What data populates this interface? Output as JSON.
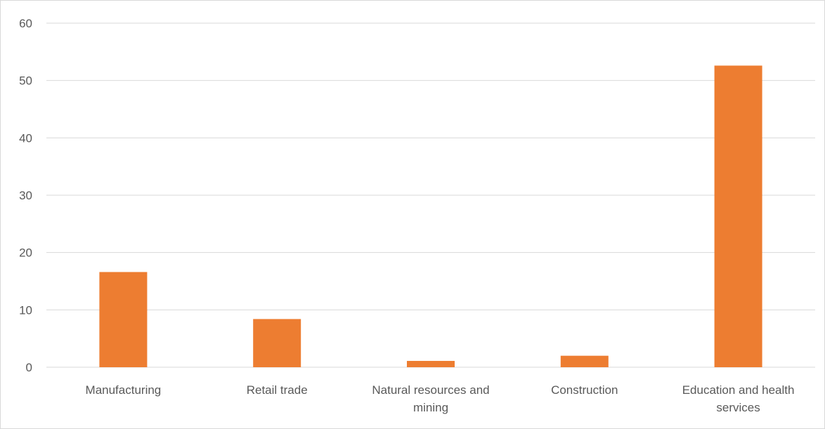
{
  "chart_data": {
    "type": "bar",
    "title": "",
    "xlabel": "",
    "ylabel": "",
    "categories": [
      [
        "Manufacturing"
      ],
      [
        "Retail trade"
      ],
      [
        "Natural resources and",
        "mining"
      ],
      [
        "Construction"
      ],
      [
        "Education and health",
        "services"
      ]
    ],
    "values": [
      16.6,
      8.4,
      1.1,
      2.0,
      52.6
    ],
    "ylim": [
      0,
      60
    ],
    "yticks": [
      "0",
      "10",
      "20",
      "30",
      "40",
      "50",
      "60"
    ],
    "grid": true,
    "legend": "none",
    "colors": {
      "bar": "#ed7d31",
      "grid": "#d9d9d9",
      "axis": "#d9d9d9",
      "text": "#595959"
    }
  }
}
